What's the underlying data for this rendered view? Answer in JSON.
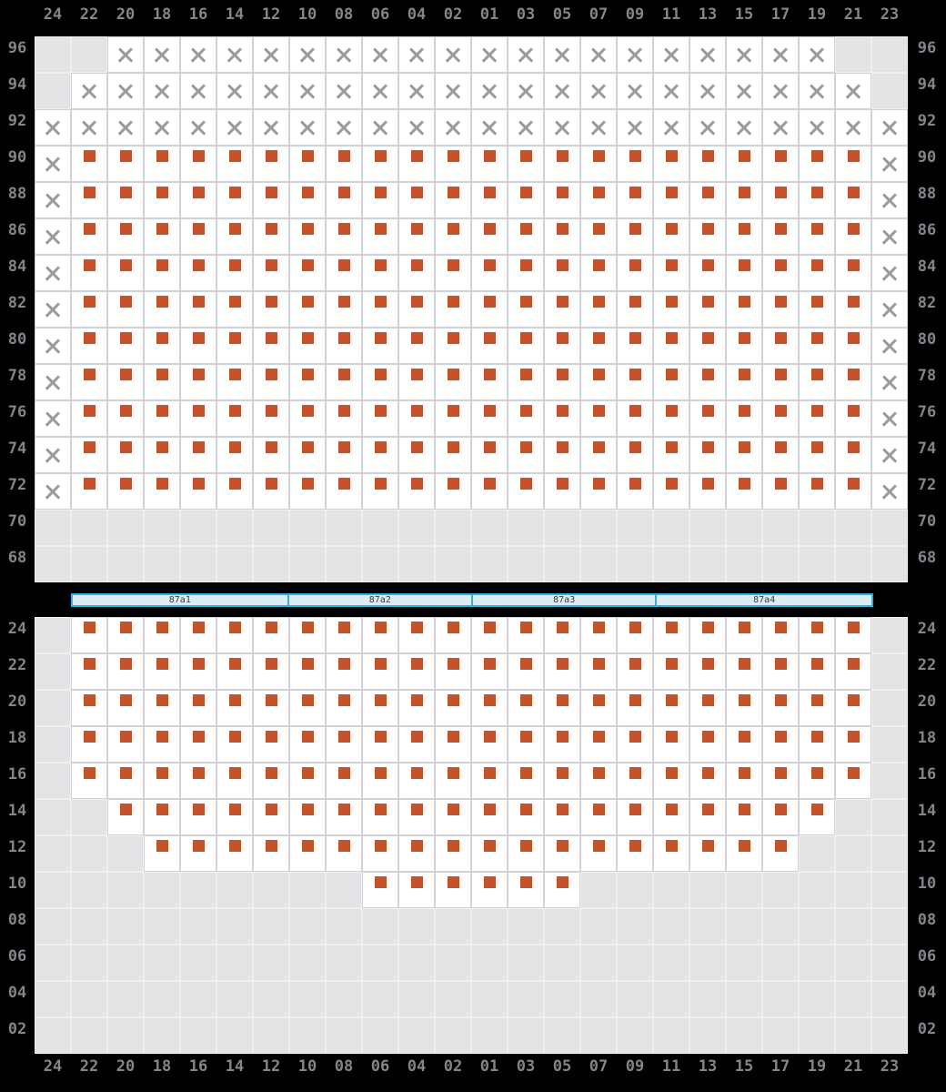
{
  "columns": [
    "24",
    "22",
    "20",
    "18",
    "16",
    "14",
    "12",
    "10",
    "08",
    "06",
    "04",
    "02",
    "01",
    "03",
    "05",
    "07",
    "09",
    "11",
    "13",
    "15",
    "17",
    "19",
    "21",
    "23"
  ],
  "cell_codes": {
    "G": "disabled",
    "X": "cross",
    "S": "square"
  },
  "top_grid": {
    "row_labels": [
      "96",
      "94",
      "92",
      "90",
      "88",
      "86",
      "84",
      "82",
      "80",
      "78",
      "76",
      "74",
      "72",
      "70",
      "68"
    ],
    "rows": [
      "GGXXXXXXXXXXXXXXXXXXXXGG",
      "GXXXXXXXXXXXXXXXXXXXXXXG",
      "XXXXXXXXXXXXXXXXXXXXXXXX",
      "XSSSSSSSSSSSSSSSSSSSSSSX",
      "XSSSSSSSSSSSSSSSSSSSSSSX",
      "XSSSSSSSSSSSSSSSSSSSSSSX",
      "XSSSSSSSSSSSSSSSSSSSSSSX",
      "XSSSSSSSSSSSSSSSSSSSSSSX",
      "XSSSSSSSSSSSSSSSSSSSSSSX",
      "XSSSSSSSSSSSSSSSSSSSSSSX",
      "XSSSSSSSSSSSSSSSSSSSSSSX",
      "XSSSSSSSSSSSSSSSSSSSSSSX",
      "XSSSSSSSSSSSSSSSSSSSSSSX",
      "GGGGGGGGGGGGGGGGGGGGGGGG",
      "GGGGGGGGGGGGGGGGGGGGGGGG"
    ]
  },
  "section_bar": {
    "segments": [
      {
        "label": "87a1",
        "cols": 6
      },
      {
        "label": "87a2",
        "cols": 5
      },
      {
        "label": "87a3",
        "cols": 5
      },
      {
        "label": "87a4",
        "cols": 6
      }
    ]
  },
  "bottom_grid": {
    "row_labels": [
      "24",
      "22",
      "20",
      "18",
      "16",
      "14",
      "12",
      "10",
      "08",
      "06",
      "04",
      "02"
    ],
    "rows": [
      "GSSSSSSSSSSSSSSSSSSSSSSG",
      "GSSSSSSSSSSSSSSSSSSSSSSG",
      "GSSSSSSSSSSSSSSSSSSSSSSG",
      "GSSSSSSSSSSSSSSSSSSSSSSG",
      "GSSSSSSSSSSSSSSSSSSSSSSG",
      "GGSSSSSSSSSSSSSSSSSSSSGG",
      "GGGSSSSSSSSSSSSSSSSSSGGG",
      "GGGGGGGGGSSSSSSGGGGGGGGG",
      "GGGGGGGGGGGGGGGGGGGGGGGG",
      "GGGGGGGGGGGGGGGGGGGGGGGG",
      "GGGGGGGGGGGGGGGGGGGGGGGG",
      "GGGGGGGGGGGGGGGGGGGGGGGG"
    ]
  },
  "colors": {
    "background": "#000000",
    "label": "#84848c",
    "cell_available": "#ffffff",
    "cell_disabled": "#e4e4e6",
    "grid_line": "#d2d2d6",
    "disabled_grid_line": "#f0f0f1",
    "cross": "#9b9b9f",
    "square": "#c75128",
    "bar_fill": "#daeefa",
    "bar_border": "#35aee4",
    "bar_label": "#3a3a3a"
  }
}
